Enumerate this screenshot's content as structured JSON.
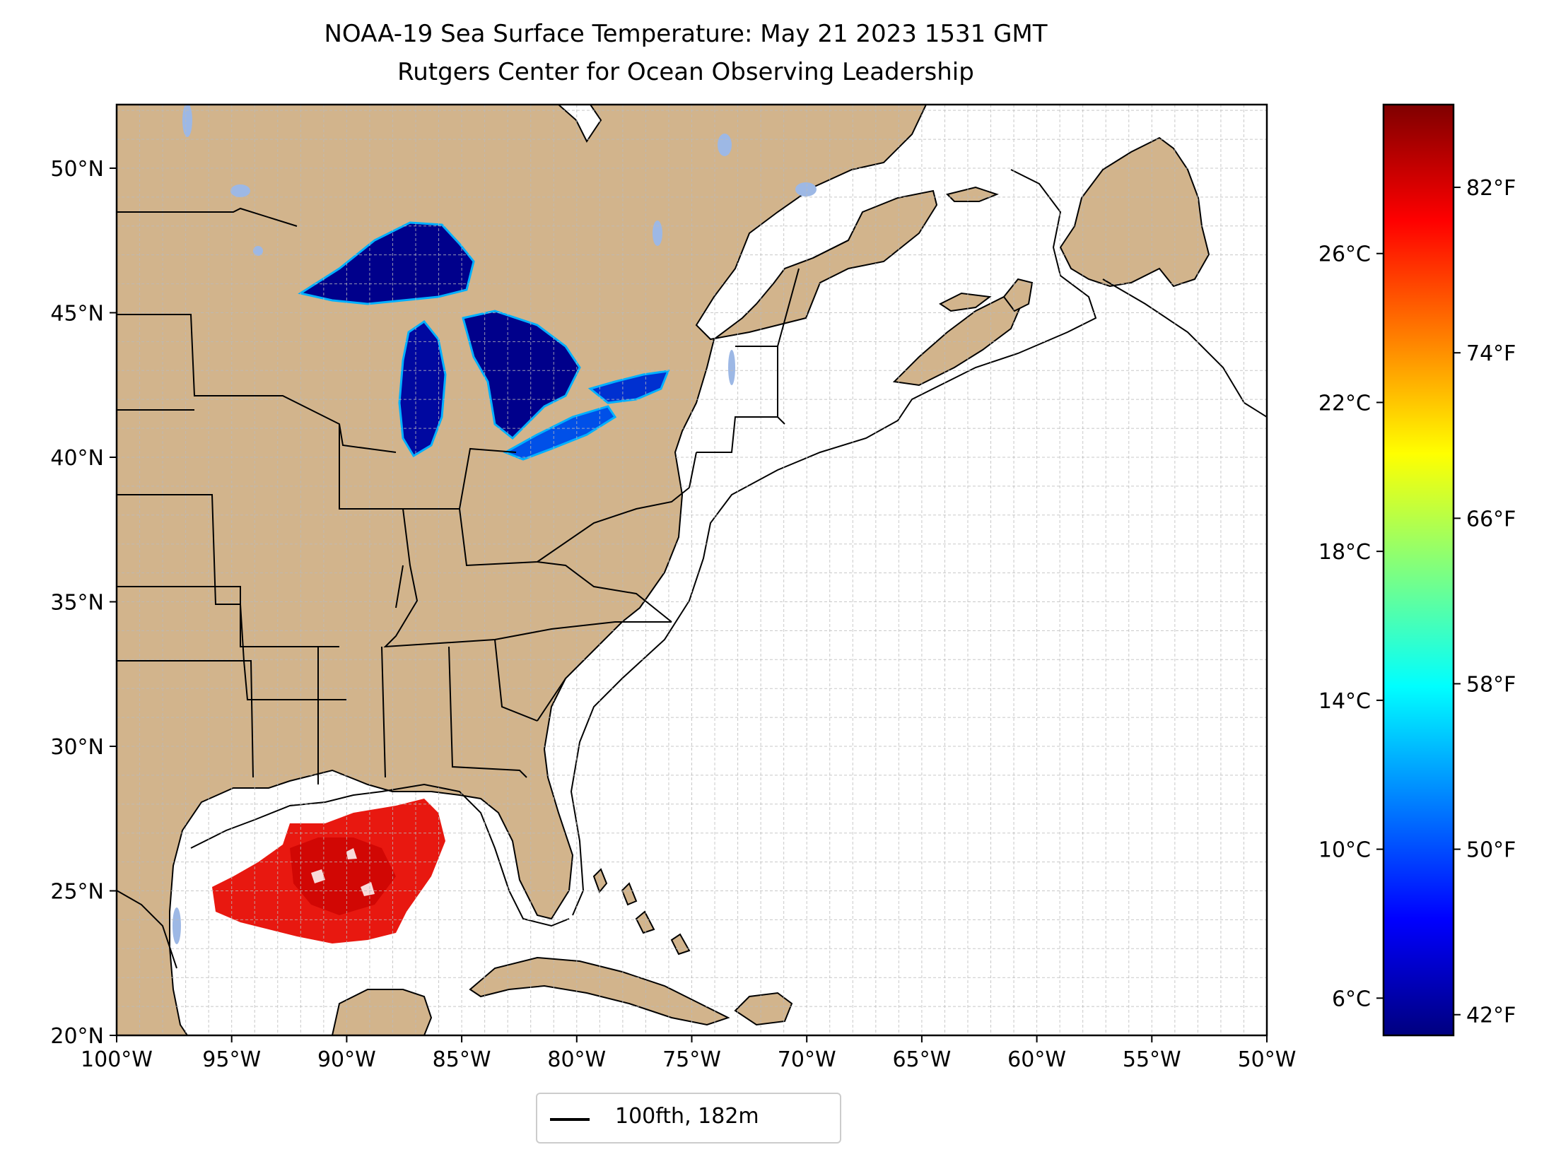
{
  "title": "NOAA-19 Sea Surface Temperature: May 21 2023 1531 GMT",
  "subtitle": "Rutgers Center for Ocean Observing Leadership",
  "colors": {
    "land": "#D2B48C",
    "inland_water": "#9DB8E5",
    "ocean": "#FFFFFF",
    "grid": "#BBBBBB"
  },
  "map": {
    "lon_range": [
      -100,
      -50
    ],
    "lat_range": [
      20,
      52.2
    ],
    "lon_ticks": [
      {
        "value": -100,
        "label": "100°W"
      },
      {
        "value": -95,
        "label": "95°W"
      },
      {
        "value": -90,
        "label": "90°W"
      },
      {
        "value": -85,
        "label": "85°W"
      },
      {
        "value": -80,
        "label": "80°W"
      },
      {
        "value": -75,
        "label": "75°W"
      },
      {
        "value": -70,
        "label": "70°W"
      },
      {
        "value": -65,
        "label": "65°W"
      },
      {
        "value": -60,
        "label": "60°W"
      },
      {
        "value": -55,
        "label": "55°W"
      },
      {
        "value": -50,
        "label": "50°W"
      }
    ],
    "lat_ticks": [
      {
        "value": 20,
        "label": "20°N"
      },
      {
        "value": 25,
        "label": "25°N"
      },
      {
        "value": 30,
        "label": "30°N"
      },
      {
        "value": 35,
        "label": "35°N"
      },
      {
        "value": 40,
        "label": "40°N"
      },
      {
        "value": 45,
        "label": "45°N"
      },
      {
        "value": 50,
        "label": "50°N"
      }
    ],
    "grid": true
  },
  "colorbar": {
    "colormap": "jet",
    "range_c": [
      5,
      30
    ],
    "colors": [
      "#00007F",
      "#0000FF",
      "#007FFF",
      "#00FFFF",
      "#7FFF7F",
      "#FFFF00",
      "#FF7F00",
      "#FF0000",
      "#7F0000"
    ],
    "celsius_ticks": [
      {
        "value": 6,
        "label": "6°C"
      },
      {
        "value": 10,
        "label": "10°C"
      },
      {
        "value": 14,
        "label": "14°C"
      },
      {
        "value": 18,
        "label": "18°C"
      },
      {
        "value": 22,
        "label": "22°C"
      },
      {
        "value": 26,
        "label": "26°C"
      }
    ],
    "fahrenheit_ticks": [
      {
        "value": 42,
        "label": "42°F"
      },
      {
        "value": 50,
        "label": "50°F"
      },
      {
        "value": 58,
        "label": "58°F"
      },
      {
        "value": 66,
        "label": "66°F"
      },
      {
        "value": 74,
        "label": "74°F"
      },
      {
        "value": 82,
        "label": "82°F"
      }
    ]
  },
  "legend": {
    "label": "100fth, 182m",
    "placement": "bottom-center"
  }
}
